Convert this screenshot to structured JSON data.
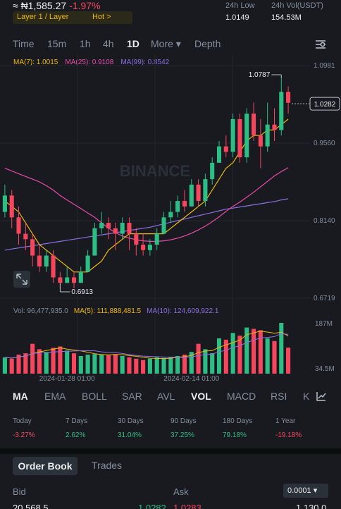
{
  "ticker": {
    "price": "≈ ₦1,585.27",
    "change": "-1.97%",
    "tag": "Layer 1 / Layer",
    "hot": "Hot  >",
    "stats": [
      {
        "label": "24h Low",
        "value": "1.0149"
      },
      {
        "label": "24h Vol(USDT)",
        "value": "154.53M"
      }
    ]
  },
  "timeframes": [
    "Time",
    "15m",
    "1h",
    "4h",
    "1D",
    "More ▾",
    "Depth"
  ],
  "active_timeframe": "1D",
  "ma_legend": [
    {
      "text": "MA(7): 1.0015",
      "color": "#f0b90b"
    },
    {
      "text": "MA(25): 0.9108",
      "color": "#e94ba8"
    },
    {
      "text": "MA(99): 0.8542",
      "color": "#8c6fe0"
    }
  ],
  "watermark": "BINANCE",
  "colors": {
    "up": "#2ebd85",
    "down": "#f6465d",
    "ma7": "#f0b90b",
    "ma25": "#e94ba8",
    "ma99": "#8c6fe0"
  },
  "chart_data": {
    "type": "candlestick",
    "y_ticks": [
      "1.0981",
      "0.9560",
      "0.8140",
      "0.6719"
    ],
    "y_tick_values": [
      1.0981,
      0.956,
      0.814,
      0.6719
    ],
    "y_range": [
      0.6719,
      1.0981
    ],
    "current_price": "1.0282",
    "current_price_value": 1.0282,
    "high_label": "1.0787",
    "high_value": 1.0787,
    "high_index": 40,
    "low_label": "0.6913",
    "low_value": 0.6913,
    "low_index": 8,
    "x_labels": [
      "2024-01-28 01:00",
      "2024-02-14 01:00"
    ],
    "x_label_indexes": [
      9,
      27
    ],
    "candles": [
      [
        0.83,
        0.86,
        0.88,
        0.82
      ],
      [
        0.86,
        0.82,
        0.87,
        0.8
      ],
      [
        0.82,
        0.79,
        0.84,
        0.77
      ],
      [
        0.79,
        0.78,
        0.81,
        0.76
      ],
      [
        0.78,
        0.75,
        0.79,
        0.73
      ],
      [
        0.75,
        0.73,
        0.77,
        0.72
      ],
      [
        0.73,
        0.75,
        0.76,
        0.72
      ],
      [
        0.75,
        0.71,
        0.76,
        0.7
      ],
      [
        0.71,
        0.7,
        0.72,
        0.69
      ],
      [
        0.7,
        0.71,
        0.73,
        0.7
      ],
      [
        0.71,
        0.7,
        0.72,
        0.69
      ],
      [
        0.7,
        0.72,
        0.73,
        0.7
      ],
      [
        0.72,
        0.75,
        0.76,
        0.72
      ],
      [
        0.75,
        0.8,
        0.81,
        0.75
      ],
      [
        0.8,
        0.81,
        0.83,
        0.79
      ],
      [
        0.81,
        0.8,
        0.82,
        0.78
      ],
      [
        0.8,
        0.79,
        0.81,
        0.76
      ],
      [
        0.79,
        0.81,
        0.82,
        0.78
      ],
      [
        0.81,
        0.79,
        0.82,
        0.76
      ],
      [
        0.79,
        0.77,
        0.8,
        0.75
      ],
      [
        0.77,
        0.76,
        0.79,
        0.75
      ],
      [
        0.76,
        0.77,
        0.78,
        0.75
      ],
      [
        0.77,
        0.79,
        0.8,
        0.76
      ],
      [
        0.79,
        0.82,
        0.83,
        0.79
      ],
      [
        0.82,
        0.83,
        0.85,
        0.81
      ],
      [
        0.83,
        0.85,
        0.86,
        0.82
      ],
      [
        0.85,
        0.84,
        0.87,
        0.83
      ],
      [
        0.84,
        0.88,
        0.89,
        0.84
      ],
      [
        0.88,
        0.85,
        0.89,
        0.84
      ],
      [
        0.85,
        0.89,
        0.9,
        0.84
      ],
      [
        0.89,
        0.92,
        0.93,
        0.88
      ],
      [
        0.92,
        0.95,
        0.96,
        0.92
      ],
      [
        0.95,
        0.94,
        0.97,
        0.93
      ],
      [
        0.94,
        1.0,
        1.01,
        0.93
      ],
      [
        1.0,
        0.93,
        1.01,
        0.92
      ],
      [
        0.93,
        1.01,
        1.02,
        0.92
      ],
      [
        1.01,
        0.97,
        1.03,
        0.96
      ],
      [
        0.97,
        0.95,
        1.0,
        0.91
      ],
      [
        0.95,
        0.99,
        1.03,
        0.94
      ],
      [
        0.99,
        0.98,
        1.02,
        0.96
      ],
      [
        0.98,
        1.05,
        1.0787,
        0.97
      ],
      [
        1.05,
        1.03,
        1.06,
        1.01
      ]
    ],
    "ma7": [
      0.85,
      0.84,
      0.83,
      0.81,
      0.79,
      0.77,
      0.76,
      0.75,
      0.74,
      0.73,
      0.72,
      0.72,
      0.72,
      0.73,
      0.74,
      0.76,
      0.77,
      0.78,
      0.79,
      0.79,
      0.79,
      0.79,
      0.79,
      0.79,
      0.8,
      0.81,
      0.82,
      0.83,
      0.84,
      0.85,
      0.87,
      0.89,
      0.91,
      0.92,
      0.94,
      0.96,
      0.97,
      0.97,
      0.98,
      0.98,
      0.99,
      1.0
    ],
    "ma25": [
      0.91,
      0.905,
      0.9,
      0.895,
      0.89,
      0.885,
      0.878,
      0.87,
      0.86,
      0.852,
      0.844,
      0.836,
      0.828,
      0.82,
      0.81,
      0.8,
      0.792,
      0.786,
      0.782,
      0.779,
      0.777,
      0.776,
      0.776,
      0.777,
      0.779,
      0.782,
      0.786,
      0.791,
      0.797,
      0.804,
      0.812,
      0.821,
      0.831,
      0.84,
      0.848,
      0.857,
      0.866,
      0.876,
      0.886,
      0.896,
      0.904,
      0.911
    ],
    "ma99": [
      0.76,
      0.762,
      0.764,
      0.766,
      0.768,
      0.77,
      0.772,
      0.774,
      0.776,
      0.778,
      0.78,
      0.782,
      0.784,
      0.786,
      0.788,
      0.79,
      0.792,
      0.794,
      0.796,
      0.798,
      0.8,
      0.802,
      0.805,
      0.808,
      0.811,
      0.814,
      0.817,
      0.82,
      0.823,
      0.826,
      0.829,
      0.832,
      0.835,
      0.837,
      0.839,
      0.841,
      0.843,
      0.845,
      0.847,
      0.849,
      0.852,
      0.854
    ]
  },
  "volume": {
    "legend": [
      {
        "text": "Vol: 96,477,935.0",
        "color": "#848e9c"
      },
      {
        "text": "MA(5): 111,888,481.5",
        "color": "#f0b90b"
      },
      {
        "text": "MA(10): 124,609,922.1",
        "color": "#8c6fe0"
      }
    ],
    "y_ticks": [
      "187M",
      "34.5M"
    ],
    "y_tick_values": [
      187,
      34.5
    ],
    "bars_millions": [
      60,
      55,
      70,
      75,
      110,
      90,
      80,
      95,
      100,
      85,
      75,
      65,
      70,
      72,
      70,
      68,
      72,
      65,
      60,
      55,
      50,
      55,
      60,
      58,
      62,
      65,
      70,
      80,
      110,
      90,
      75,
      130,
      125,
      150,
      140,
      170,
      165,
      160,
      130,
      120,
      187,
      96
    ]
  },
  "indicators": [
    "MA",
    "EMA",
    "BOLL",
    "SAR",
    "AVL",
    "VOL",
    "MACD",
    "RSI",
    "KI"
  ],
  "active_indicators": [
    "MA",
    "VOL"
  ],
  "performance": [
    {
      "label": "Today",
      "value": "-3.27%",
      "color": "#f6465d"
    },
    {
      "label": "7 Days",
      "value": "2.62%",
      "color": "#2ebd85"
    },
    {
      "label": "30 Days",
      "value": "31.04%",
      "color": "#2ebd85"
    },
    {
      "label": "90 Days",
      "value": "37.25%",
      "color": "#2ebd85"
    },
    {
      "label": "180 Days",
      "value": "79.18%",
      "color": "#2ebd85"
    },
    {
      "label": "1 Year",
      "value": "-19.18%",
      "color": "#f6465d"
    }
  ],
  "orderbook": {
    "tabs": [
      "Order Book",
      "Trades"
    ],
    "bid_label": "Bid",
    "ask_label": "Ask",
    "precision": "0.0001 ▾",
    "partial_row": {
      "left": "20,568.5",
      "mid_green": "1.0282",
      "mid_red": "1.0283",
      "right": "1,130.0"
    }
  }
}
